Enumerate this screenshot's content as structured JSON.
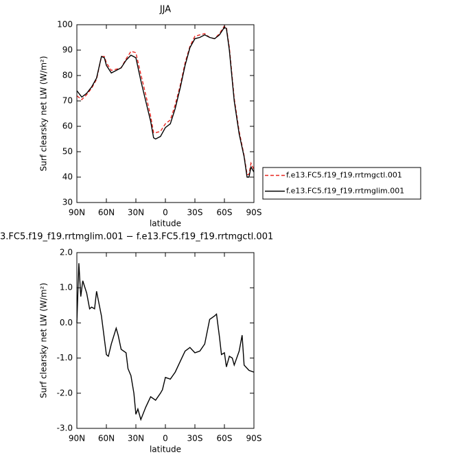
{
  "chart_data": [
    {
      "type": "line",
      "title": "JJA",
      "x_label": "latitude",
      "y_label": "Surf clearsky net LW (W/m²)",
      "x": [
        90,
        85,
        80,
        75,
        70,
        65,
        62,
        60,
        55,
        50,
        45,
        40,
        35,
        30,
        25,
        20,
        15,
        12,
        10,
        5,
        0,
        -5,
        -10,
        -15,
        -20,
        -25,
        -30,
        -35,
        -40,
        -45,
        -50,
        -55,
        -60,
        -62,
        -65,
        -70,
        -75,
        -80,
        -83,
        -85,
        -87,
        -90
      ],
      "series": [
        {
          "name": "f.e13.FC5.f19_f19.rrtmgctl.001",
          "color": "#e8231d",
          "dash": true,
          "values": [
            72,
            70.5,
            72.5,
            75,
            78.5,
            87.5,
            87.5,
            85,
            82,
            82.5,
            83,
            86.5,
            89.5,
            89,
            80.5,
            72.5,
            64,
            57.5,
            57.5,
            58,
            61,
            62.5,
            68.5,
            76,
            85,
            91.5,
            95.5,
            96,
            96.5,
            95,
            94.5,
            96.5,
            99.5,
            99,
            91,
            71,
            58,
            48.5,
            41,
            41,
            45.5,
            43
          ]
        },
        {
          "name": "f.e13.FC5.f19_f19.rrtmglim.001",
          "color": "#000000",
          "dash": false,
          "values": [
            74,
            71.5,
            73,
            75.5,
            79,
            87.5,
            87,
            84,
            81,
            82,
            83,
            86,
            88,
            87,
            78,
            70,
            62,
            55.5,
            55,
            56,
            59.5,
            61,
            67,
            75,
            84,
            91,
            94.5,
            95,
            96,
            95,
            94.5,
            96,
            99,
            98.5,
            90,
            70,
            57,
            48,
            40,
            40,
            44,
            42
          ]
        }
      ],
      "xlim": [
        90,
        -90
      ],
      "xticks": [
        {
          "value": 90,
          "label": "90N"
        },
        {
          "value": 60,
          "label": "60N"
        },
        {
          "value": 30,
          "label": "30N"
        },
        0,
        {
          "value": -30,
          "label": "30S"
        },
        {
          "value": -60,
          "label": "60S"
        },
        {
          "value": -90,
          "label": "90S"
        }
      ],
      "ylim": [
        30,
        100
      ],
      "yticks": [
        30,
        40,
        50,
        60,
        70,
        80,
        90,
        100
      ],
      "legend": "right"
    },
    {
      "type": "line",
      "title": "3.FC5.f19_f19.rrtmglim.001 − f.e13.FC5.f19_f19.rrtmgctl.001",
      "x_label": "latitude",
      "y_label": "Surf clearsky net LW (W/m²)",
      "x": [
        90,
        88,
        86,
        84,
        80,
        77,
        75,
        72,
        70,
        65,
        60,
        58,
        55,
        50,
        48,
        45,
        40,
        38,
        35,
        32,
        30,
        28,
        25,
        20,
        15,
        10,
        5,
        3,
        0,
        -5,
        -10,
        -15,
        -20,
        -25,
        -30,
        -35,
        -40,
        -45,
        -50,
        -52,
        -55,
        -57,
        -60,
        -62,
        -65,
        -68,
        -70,
        -75,
        -78,
        -80,
        -85,
        -90
      ],
      "values": [
        0,
        1.7,
        0.75,
        1.2,
        0.85,
        0.4,
        0.45,
        0.4,
        0.9,
        0.2,
        -0.9,
        -0.95,
        -0.6,
        -0.15,
        -0.35,
        -0.75,
        -0.85,
        -1.3,
        -1.5,
        -2.0,
        -2.6,
        -2.45,
        -2.75,
        -2.4,
        -2.1,
        -2.2,
        -2.0,
        -1.9,
        -1.55,
        -1.6,
        -1.4,
        -1.1,
        -0.8,
        -0.7,
        -0.85,
        -0.8,
        -0.6,
        0.1,
        0.2,
        0.25,
        -0.4,
        -0.9,
        -0.85,
        -1.25,
        -0.95,
        -1.0,
        -1.2,
        -0.8,
        -0.35,
        -1.2,
        -1.35,
        -1.4
      ],
      "color": "#000000",
      "xlim": [
        90,
        -90
      ],
      "xticks": [
        {
          "value": 90,
          "label": "90N"
        },
        {
          "value": 60,
          "label": "60N"
        },
        {
          "value": 30,
          "label": "30N"
        },
        0,
        {
          "value": -30,
          "label": "30S"
        },
        {
          "value": -60,
          "label": "60S"
        },
        {
          "value": -90,
          "label": "90S"
        }
      ],
      "ylim": [
        -3,
        2
      ],
      "yticks": [
        {
          "value": -3,
          "label": "-3.0"
        },
        {
          "value": -2,
          "label": "-2.0"
        },
        {
          "value": -1,
          "label": "-1.0"
        },
        {
          "value": 0,
          "label": "0.0"
        },
        {
          "value": 1,
          "label": "1.0"
        },
        {
          "value": 2,
          "label": "2.0"
        }
      ]
    }
  ]
}
